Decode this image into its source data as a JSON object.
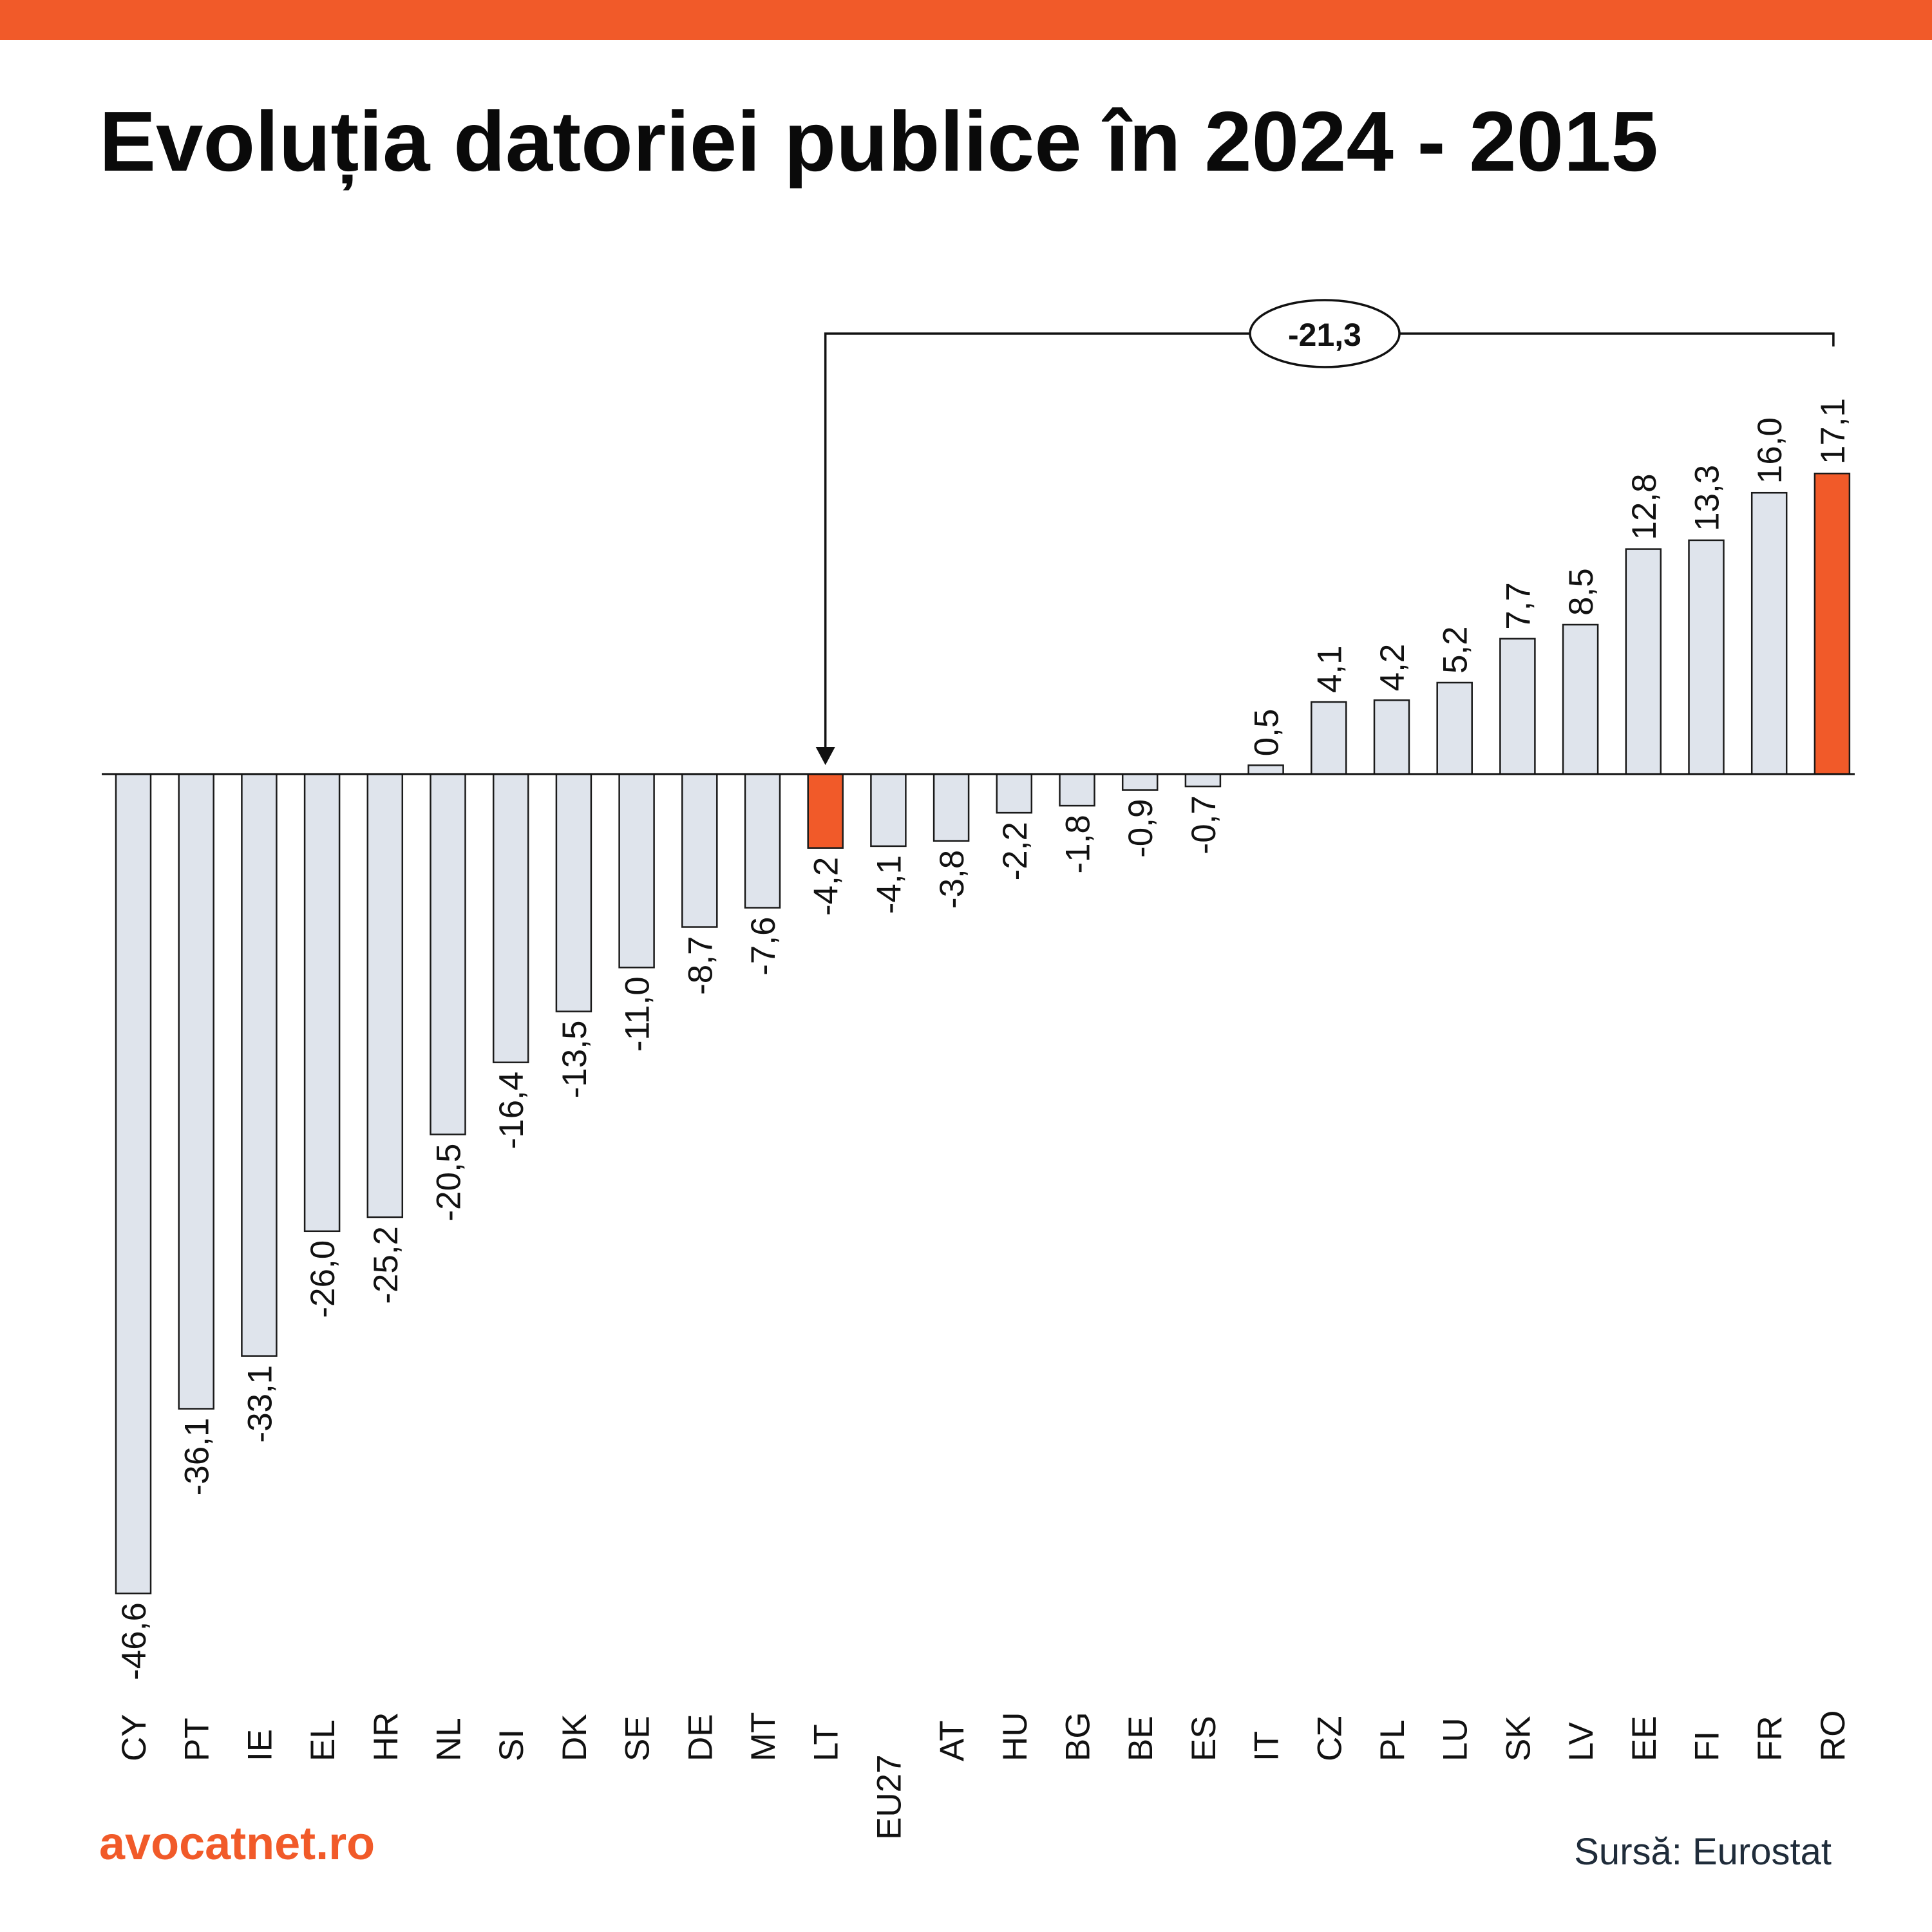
{
  "title": "Evoluția datoriei publice în 2024 - 2015",
  "brand": "avocatnet.ro",
  "source": "Sursă: Eurostat",
  "colors": {
    "accent": "#f15a29",
    "bar_default": "#dfe4ec",
    "bar_stroke": "#1a1a1a",
    "text": "#0a0a0a"
  },
  "chart_data": {
    "type": "bar",
    "categories": [
      "CY",
      "PT",
      "IE",
      "EL",
      "HR",
      "NL",
      "SI",
      "DK",
      "SE",
      "DE",
      "MT",
      "LT",
      "EU27",
      "AT",
      "HU",
      "BG",
      "BE",
      "ES",
      "IT",
      "CZ",
      "PL",
      "LU",
      "SK",
      "LV",
      "EE",
      "FI",
      "FR",
      "RO"
    ],
    "values": [
      -46.6,
      -36.1,
      -33.1,
      -26.0,
      -25.2,
      -20.5,
      -16.4,
      -13.5,
      -11.0,
      -8.7,
      -7.6,
      -4.2,
      -4.1,
      -3.8,
      -2.2,
      -1.8,
      -0.9,
      -0.7,
      0.5,
      4.1,
      4.2,
      5.2,
      7.7,
      8.5,
      12.8,
      13.3,
      16.0,
      17.1
    ],
    "value_labels": [
      "-46,6",
      "-36,1",
      "-33,1",
      "-26,0",
      "-25,2",
      "-20,5",
      "-16,4",
      "-13,5",
      "-11,0",
      "-8,7",
      "-7,6",
      "-4,2",
      "-4,1",
      "-3,8",
      "-2,2",
      "-1,8",
      "-0,9",
      "-0,7",
      "0,5",
      "4,1",
      "4,2",
      "5,2",
      "7,7",
      "8,5",
      "12,8",
      "13,3",
      "16,0",
      "17,1"
    ],
    "highlighted": [
      "LT",
      "RO"
    ],
    "annotation": {
      "label": "-21,3",
      "from": "RO",
      "to": "LT"
    },
    "title": "Evoluția datoriei publice în 2024 - 2015",
    "xlabel": "",
    "ylabel": "",
    "grid": false,
    "legend": "none"
  }
}
